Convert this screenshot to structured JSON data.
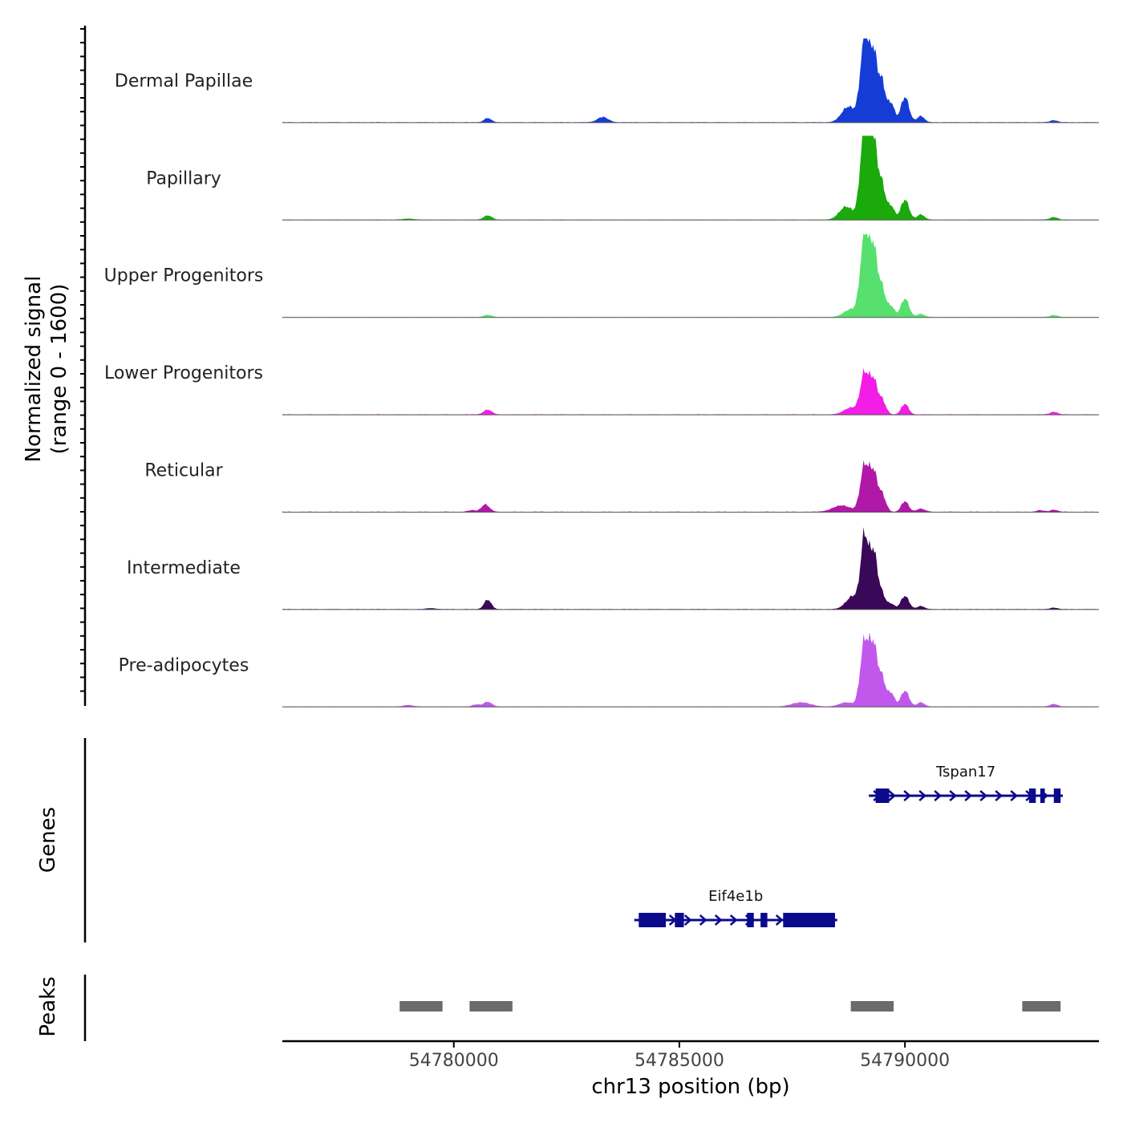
{
  "chart_data": {
    "type": "area",
    "title": "",
    "y_axis_label": [
      "Normalized signal",
      "(range 0 - 1600)"
    ],
    "ylim": [
      0,
      1600
    ],
    "xlabel": "chr13 position (bp)",
    "xlim": [
      54776200,
      54794300
    ],
    "x_ticks": [
      54780000,
      54785000,
      54790000
    ],
    "x_tick_labels": [
      "54780000",
      "54785000",
      "54790000"
    ],
    "colors": {
      "gene": "#0b0a8c",
      "peak": "#6b6b6b",
      "axis": "#000000",
      "baseline": "#555555"
    },
    "tracks": [
      {
        "label": "Dermal Papillae",
        "color": "#163cd6",
        "peaks": [
          [
            54780750,
            80,
            80
          ],
          [
            54783300,
            100,
            120
          ],
          [
            54788750,
            300,
            150
          ],
          [
            54789100,
            1550,
            90
          ],
          [
            54789300,
            1300,
            90
          ],
          [
            54789500,
            700,
            80
          ],
          [
            54789700,
            350,
            70
          ],
          [
            54790000,
            480,
            90
          ],
          [
            54790350,
            120,
            80
          ],
          [
            54793300,
            40,
            80
          ]
        ]
      },
      {
        "label": "Papillary",
        "color": "#1aaa0b",
        "peaks": [
          [
            54779000,
            20,
            120
          ],
          [
            54780750,
            80,
            90
          ],
          [
            54788700,
            250,
            150
          ],
          [
            54789100,
            1750,
            90
          ],
          [
            54789300,
            1500,
            90
          ],
          [
            54789500,
            600,
            80
          ],
          [
            54789700,
            250,
            70
          ],
          [
            54790000,
            380,
            90
          ],
          [
            54790350,
            100,
            80
          ],
          [
            54793300,
            50,
            80
          ]
        ]
      },
      {
        "label": "Upper Progenitors",
        "color": "#57e06e",
        "peaks": [
          [
            54780750,
            40,
            90
          ],
          [
            54788800,
            150,
            150
          ],
          [
            54789100,
            1500,
            90
          ],
          [
            54789300,
            1300,
            90
          ],
          [
            54789500,
            500,
            80
          ],
          [
            54789700,
            200,
            70
          ],
          [
            54790000,
            350,
            90
          ],
          [
            54790350,
            60,
            80
          ],
          [
            54793300,
            40,
            80
          ]
        ]
      },
      {
        "label": "Lower Progenitors",
        "color": "#f21ee6",
        "peaks": [
          [
            54780750,
            90,
            90
          ],
          [
            54788800,
            130,
            150
          ],
          [
            54789100,
            750,
            90
          ],
          [
            54789300,
            650,
            90
          ],
          [
            54789500,
            250,
            80
          ],
          [
            54790000,
            200,
            80
          ],
          [
            54793300,
            50,
            80
          ]
        ]
      },
      {
        "label": "Reticular",
        "color": "#b018a8",
        "peaks": [
          [
            54780700,
            140,
            90
          ],
          [
            54780400,
            30,
            80
          ],
          [
            54788600,
            120,
            200
          ],
          [
            54789100,
            850,
            90
          ],
          [
            54789300,
            750,
            90
          ],
          [
            54789500,
            300,
            80
          ],
          [
            54790000,
            200,
            80
          ],
          [
            54790350,
            60,
            90
          ],
          [
            54793000,
            30,
            80
          ],
          [
            54793300,
            40,
            80
          ]
        ]
      },
      {
        "label": "Intermediate",
        "color": "#3a0858",
        "peaks": [
          [
            54779500,
            20,
            100
          ],
          [
            54780750,
            180,
            80
          ],
          [
            54788850,
            250,
            150
          ],
          [
            54789100,
            1300,
            80
          ],
          [
            54789300,
            1100,
            90
          ],
          [
            54789500,
            250,
            80
          ],
          [
            54789700,
            100,
            70
          ],
          [
            54790000,
            250,
            90
          ],
          [
            54790350,
            60,
            80
          ],
          [
            54793300,
            30,
            80
          ]
        ]
      },
      {
        "label": "Pre-adipocytes",
        "color": "#c257ec",
        "peaks": [
          [
            54779000,
            30,
            100
          ],
          [
            54780750,
            90,
            90
          ],
          [
            54780500,
            40,
            80
          ],
          [
            54787700,
            80,
            200
          ],
          [
            54788700,
            80,
            150
          ],
          [
            54789100,
            1200,
            90
          ],
          [
            54789300,
            1150,
            90
          ],
          [
            54789500,
            500,
            80
          ],
          [
            54789700,
            250,
            70
          ],
          [
            54790000,
            300,
            90
          ],
          [
            54790350,
            80,
            80
          ],
          [
            54793300,
            50,
            80
          ]
        ]
      }
    ],
    "genes_axis_label": "Genes",
    "genes": [
      {
        "name": "Tspan17",
        "row": 0,
        "start": 54789200,
        "end": 54793500,
        "exons": [
          [
            54789350,
            54789650
          ],
          [
            54792750,
            54792900
          ],
          [
            54793000,
            54793100
          ],
          [
            54793300,
            54793450
          ]
        ]
      },
      {
        "name": "Eif4e1b",
        "row": 1,
        "start": 54784000,
        "end": 54788500,
        "exons": [
          [
            54784100,
            54784700
          ],
          [
            54784900,
            54785100
          ],
          [
            54786500,
            54786650
          ],
          [
            54786800,
            54786950
          ],
          [
            54787300,
            54788450
          ]
        ]
      }
    ],
    "peaks_axis_label": "Peaks",
    "peak_regions": [
      [
        54778800,
        54779750
      ],
      [
        54780350,
        54781300
      ],
      [
        54788800,
        54789750
      ],
      [
        54792600,
        54793450
      ]
    ]
  }
}
